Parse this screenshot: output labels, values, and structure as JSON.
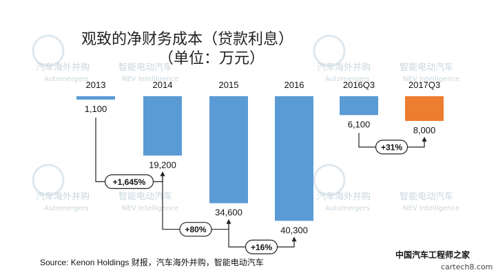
{
  "chart_data": {
    "type": "bar",
    "title": "观致的净财务成本（贷款利息）",
    "subtitle": "（单位：万元）",
    "categories": [
      "2013",
      "2014",
      "2015",
      "2016",
      "2016Q3",
      "2017Q3"
    ],
    "values": [
      1100,
      19200,
      34600,
      40300,
      6100,
      8000
    ],
    "value_labels": [
      "1,100",
      "19,200",
      "34,600",
      "40,300",
      "6,100",
      "8,000"
    ],
    "direction": "downward",
    "ylim": [
      0,
      42000
    ],
    "grid": false,
    "legend": "none",
    "colors": [
      "#5b9bd5",
      "#5b9bd5",
      "#5b9bd5",
      "#5b9bd5",
      "#5b9bd5",
      "#ed7d31"
    ],
    "annotations": [
      {
        "from": "2013",
        "to": "2014",
        "label": "+1,645%"
      },
      {
        "from": "2014",
        "to": "2015",
        "label": "+80%"
      },
      {
        "from": "2015",
        "to": "2016",
        "label": "+16%"
      },
      {
        "from": "2016Q3",
        "to": "2017Q3",
        "label": "+31%"
      }
    ]
  },
  "source": "Source: Kenon Holdings 财报，汽车海外并购，智能电动汽车",
  "watermarks": {
    "cn1": "汽车海外并购",
    "en1": "Automergers",
    "cn2": "智能电动汽车",
    "en2": "NEV Intelligence"
  },
  "brand": "中国汽车工程师之家",
  "site": "cartech8.com"
}
